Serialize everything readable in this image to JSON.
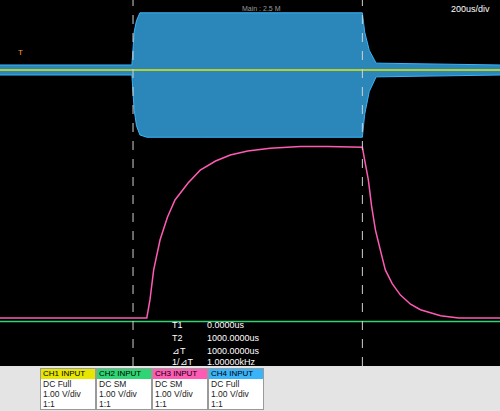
{
  "chart_data": {
    "type": "line",
    "header": "Main : 2.5 M",
    "timebase": "200us/div",
    "xlim": [
      -580,
      1600
    ],
    "ylim": [
      -4,
      4
    ],
    "grid": false,
    "tick_labels": false,
    "cursors": [
      0,
      1000
    ],
    "trigger_marker": {
      "text": "T",
      "x": -490,
      "y": 2.7
    },
    "readouts": [
      {
        "label": "T1",
        "value": "0.0000us"
      },
      {
        "label": "T2",
        "value": "1000.0000us"
      },
      {
        "label": "⊿T",
        "value": "1000.0000us"
      },
      {
        "label": "1/⊿T",
        "value": "1.00000kHz"
      }
    ],
    "series": [
      {
        "name": "CH1 INPUT",
        "color": "#e6e600",
        "settings": [
          "DC Full",
          "1.00 V/div",
          "1:1"
        ],
        "x": [
          -580,
          1600
        ],
        "values": [
          2.47,
          2.47
        ]
      },
      {
        "name": "CH2 INPUT",
        "color": "#2ed573",
        "settings": [
          "DC SM",
          "1.00 V/div",
          "1:1"
        ],
        "x": [
          -580,
          1600
        ],
        "values": [
          -3.03,
          -3.03
        ]
      },
      {
        "name": "CH3 INPUT",
        "color": "#ff5ab4",
        "settings": [
          "DC SM",
          "1.00 V/div",
          "1:1"
        ],
        "x": [
          -580,
          60,
          74,
          90,
          118,
          150,
          183,
          240,
          293,
          360,
          424,
          500,
          598,
          729,
          850,
          1000,
          1010,
          1026,
          1040,
          1057,
          1080,
          1100,
          1130,
          1166,
          1210,
          1253,
          1341,
          1420,
          1600
        ],
        "values": [
          -2.95,
          -2.95,
          -2.55,
          -1.9,
          -1.24,
          -0.75,
          -0.37,
          0.0,
          0.28,
          0.48,
          0.61,
          0.7,
          0.76,
          0.8,
          0.8,
          0.78,
          0.5,
          0.07,
          -0.5,
          -1.03,
          -1.5,
          -1.9,
          -2.2,
          -2.45,
          -2.65,
          -2.77,
          -2.9,
          -2.95,
          -2.95
        ]
      },
      {
        "name": "CH4 INPUT",
        "color": "#3ab4f8",
        "type": "band",
        "settings": [
          "DC Full",
          "1.00 V/div",
          "1:1"
        ],
        "x": [
          -580,
          -5,
          5,
          15,
          30,
          60,
          300,
          1000,
          1010,
          1030,
          1060,
          1600
        ],
        "high": [
          2.58,
          2.58,
          3.3,
          3.55,
          3.72,
          3.72,
          3.72,
          3.72,
          3.3,
          2.9,
          2.62,
          2.58
        ],
        "low": [
          2.36,
          2.36,
          1.6,
          1.25,
          1.05,
          1.0,
          1.0,
          1.0,
          1.5,
          2.0,
          2.32,
          2.36
        ]
      }
    ]
  }
}
